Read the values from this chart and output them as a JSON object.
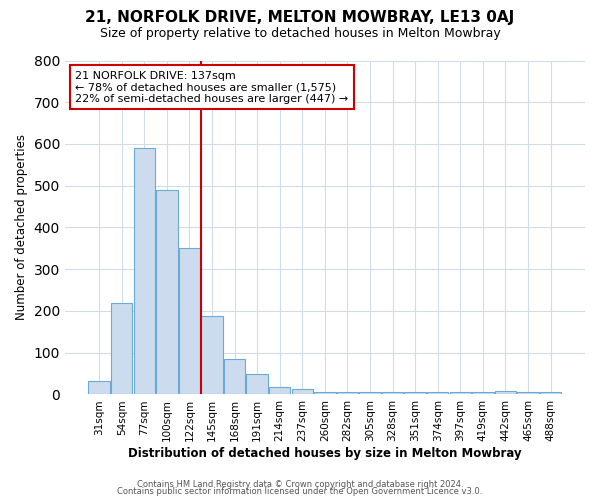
{
  "title": "21, NORFOLK DRIVE, MELTON MOWBRAY, LE13 0AJ",
  "subtitle": "Size of property relative to detached houses in Melton Mowbray",
  "xlabel": "Distribution of detached houses by size in Melton Mowbray",
  "ylabel": "Number of detached properties",
  "bar_color": "#ccdcee",
  "bar_edge_color": "#6aaad4",
  "categories": [
    "31sqm",
    "54sqm",
    "77sqm",
    "100sqm",
    "122sqm",
    "145sqm",
    "168sqm",
    "191sqm",
    "214sqm",
    "237sqm",
    "260sqm",
    "282sqm",
    "305sqm",
    "328sqm",
    "351sqm",
    "374sqm",
    "397sqm",
    "419sqm",
    "442sqm",
    "465sqm",
    "488sqm"
  ],
  "values": [
    32,
    220,
    590,
    490,
    350,
    188,
    84,
    50,
    18,
    14,
    5,
    5,
    5,
    5,
    5,
    5,
    5,
    5,
    9,
    5,
    5
  ],
  "ylim": [
    0,
    800
  ],
  "yticks": [
    0,
    100,
    200,
    300,
    400,
    500,
    600,
    700,
    800
  ],
  "property_line_x": 5,
  "property_line_color": "#cc0000",
  "annotation_text": "21 NORFOLK DRIVE: 137sqm\n← 78% of detached houses are smaller (1,575)\n22% of semi-detached houses are larger (447) →",
  "annotation_box_color": "#ffffff",
  "annotation_box_edge": "#cc0000",
  "footer_line1": "Contains HM Land Registry data © Crown copyright and database right 2024.",
  "footer_line2": "Contains public sector information licensed under the Open Government Licence v3.0.",
  "bg_color": "#ffffff",
  "grid_color": "#d0dce8",
  "title_fontsize": 11,
  "subtitle_fontsize": 9
}
